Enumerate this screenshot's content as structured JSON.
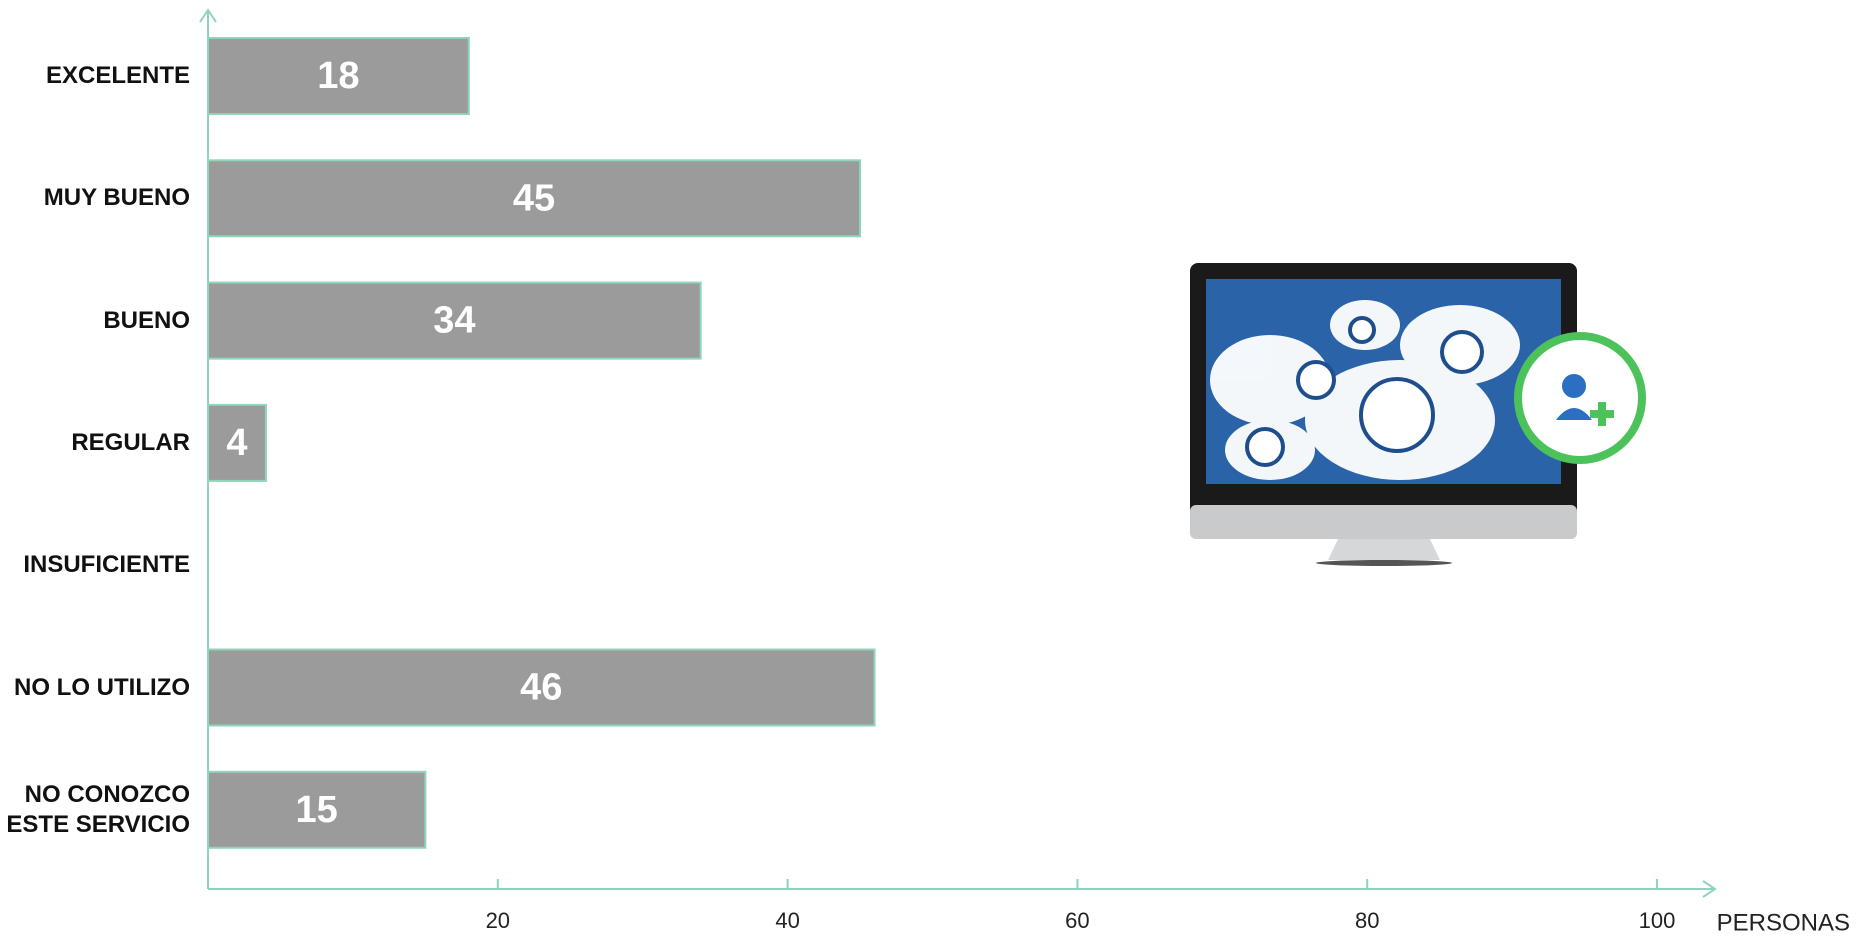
{
  "chart_data": {
    "type": "bar",
    "orientation": "horizontal",
    "categories": [
      "EXCELENTE",
      "MUY BUENO",
      "BUENO",
      "REGULAR",
      "INSUFICIENTE",
      "NO LO UTILIZO",
      "NO CONOZCO ESTE SERVICIO"
    ],
    "values": [
      18,
      45,
      34,
      4,
      0,
      46,
      15
    ],
    "color": "#9b9b9b",
    "edge_color": "#8fd6b8",
    "axis_color": "#8fd3bc",
    "xlabel": "PERSONAS",
    "xlim": [
      0,
      104
    ],
    "xticks": [
      20,
      40,
      60,
      80,
      100
    ],
    "grid": false
  }
}
